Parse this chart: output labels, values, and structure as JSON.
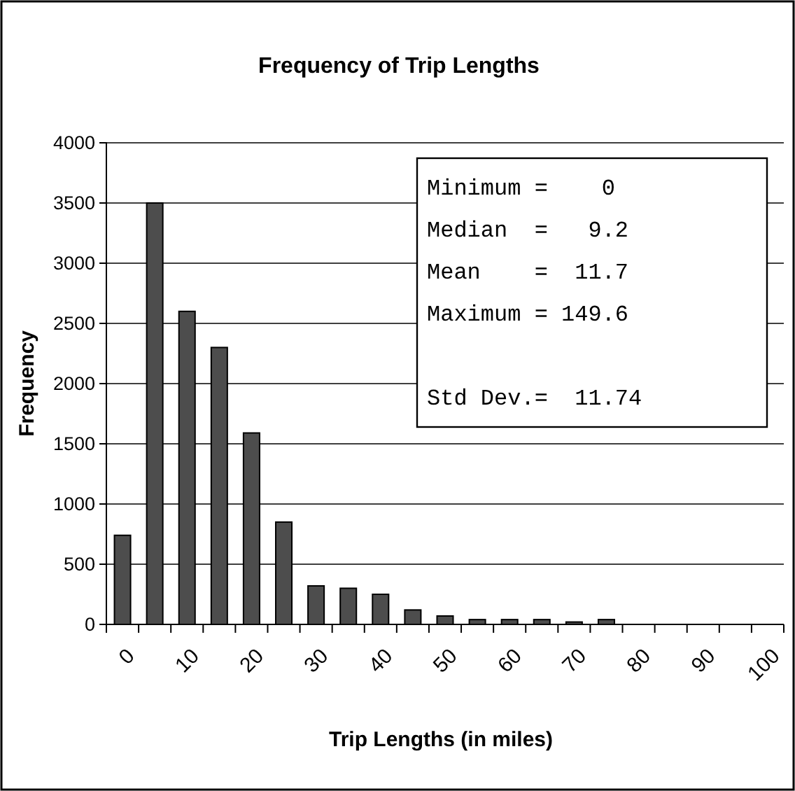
{
  "chart_data": {
    "type": "bar",
    "title": "Frequency of Trip Lengths",
    "xlabel": "Trip Lengths (in miles)",
    "ylabel": "Frequency",
    "categories": [
      "0",
      null,
      "10",
      null,
      "20",
      null,
      "30",
      null,
      "40",
      null,
      "50",
      null,
      "60",
      null,
      "70",
      null,
      "80",
      null,
      "90",
      null,
      "100"
    ],
    "values": [
      740,
      3500,
      2600,
      2300,
      1590,
      850,
      320,
      300,
      250,
      120,
      70,
      40,
      40,
      40,
      20,
      40,
      0,
      0,
      0,
      0,
      0
    ],
    "color": "#4d4d4d",
    "ylim": [
      0,
      4000
    ],
    "yticks": [
      0,
      500,
      1000,
      1500,
      2000,
      2500,
      3000,
      3500,
      4000
    ],
    "grid": "y",
    "annotations": [
      "Minimum =    0",
      "Median  =   9.2",
      "Mean    =  11.7",
      "Maximum = 149.6",
      "Std Dev.=  11.74"
    ]
  }
}
